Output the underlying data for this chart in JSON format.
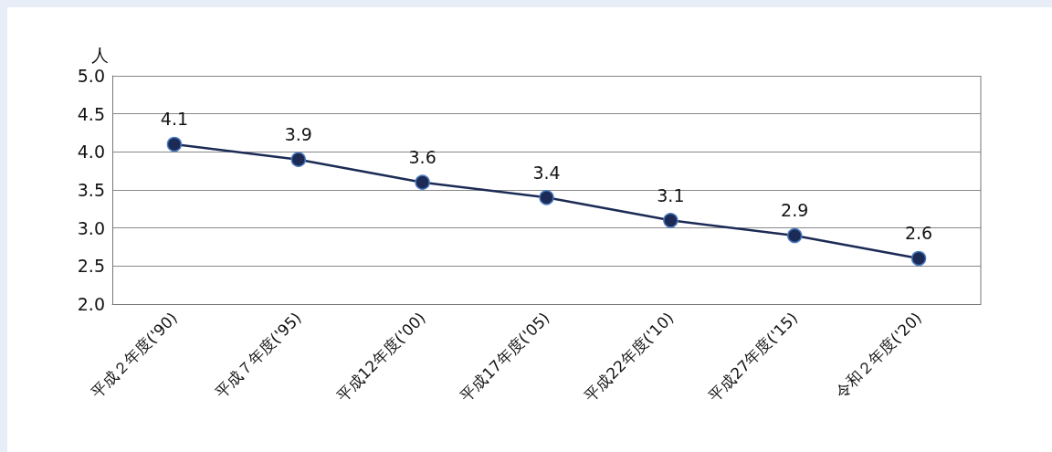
{
  "chart_data": {
    "type": "line",
    "ylabel": "人",
    "categories": [
      "平成２年度('90)",
      "平成７年度('95)",
      "平成12年度('00)",
      "平成17年度('05)",
      "平成22年度('10)",
      "平成27年度('15)",
      "令和２年度('20)"
    ],
    "series": [
      {
        "color": "#1c2b55",
        "values": [
          4.1,
          3.9,
          3.6,
          3.4,
          3.1,
          2.9,
          2.6
        ]
      }
    ],
    "ylim": [
      2.0,
      5.0
    ],
    "yticks": [
      {
        "value": 2.0,
        "label": "2.0"
      },
      {
        "value": 2.5,
        "label": "2.5"
      },
      {
        "value": 3.0,
        "label": "3.0"
      },
      {
        "value": 3.5,
        "label": "3.5"
      },
      {
        "value": 4.0,
        "label": "4.0"
      },
      {
        "value": 4.5,
        "label": "4.5"
      },
      {
        "value": 5.0,
        "label": "5.0"
      }
    ],
    "grid": "y",
    "marker": "circle",
    "line_style": "solid",
    "data_labels": true
  }
}
